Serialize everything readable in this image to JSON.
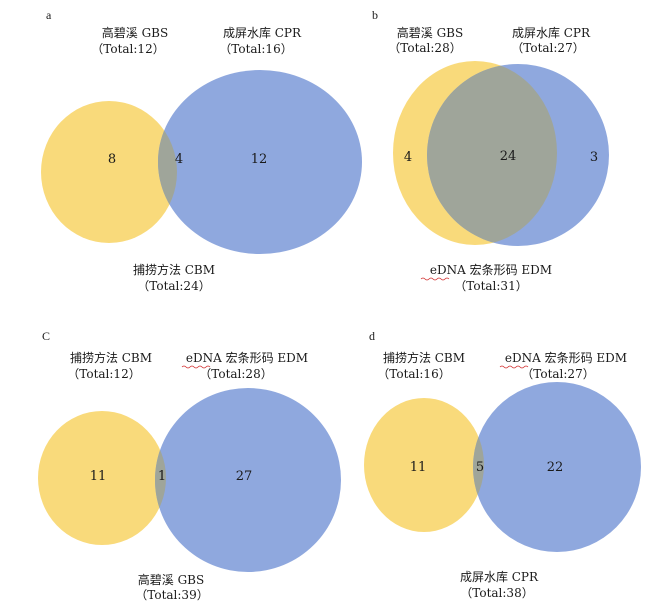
{
  "colors": {
    "yellow": "#F9DA7B",
    "blue": "#8FA8DE",
    "overlap": "#9FA59A"
  },
  "panels": [
    {
      "letter": "a",
      "left": {
        "name": "高碧溪 GBS",
        "total": "（Total:12）",
        "count": "8"
      },
      "right": {
        "name": "成屏水库 CPR",
        "total": "（Total:16）",
        "count": "12"
      },
      "overlap": {
        "count": "4"
      },
      "bottom": {
        "name": "捕捞方法 CBM",
        "total": "（Total:24）"
      }
    },
    {
      "letter": "b",
      "left": {
        "name": "高碧溪 GBS",
        "total": "（Total:28）",
        "count": "4"
      },
      "right": {
        "name": "成屏水库 CPR",
        "total": "（Total:27）",
        "count": "3"
      },
      "overlap": {
        "count": "24"
      },
      "bottom": {
        "name": "eDNA 宏条形码 EDM",
        "total": "（Total:31）"
      }
    },
    {
      "letter": "C",
      "left": {
        "name": "捕捞方法 CBM",
        "total": "（Total:12）",
        "count": "11"
      },
      "right": {
        "name": "eDNA 宏条形码 EDM",
        "total": "（Total:28）",
        "count": "27"
      },
      "overlap": {
        "count": "1"
      },
      "bottom": {
        "name": "高碧溪 GBS",
        "total": "（Total:39）"
      }
    },
    {
      "letter": "d",
      "left": {
        "name": "捕捞方法 CBM",
        "total": "（Total:16）",
        "count": "11"
      },
      "right": {
        "name": "eDNA 宏条形码 EDM",
        "total": "（Total:27）",
        "count": "22"
      },
      "overlap": {
        "count": "5"
      },
      "bottom": {
        "name": "成屏水库 CPR",
        "total": "（Total:38）"
      }
    }
  ]
}
